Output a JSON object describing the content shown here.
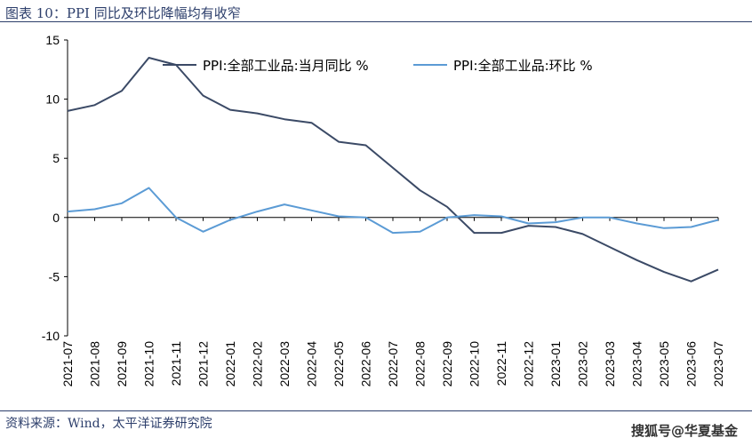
{
  "header": {
    "title": "图表 10：PPI 同比及环比降幅均有收窄"
  },
  "footer": {
    "source": "资料来源：Wind，太平洋证券研究院",
    "watermark": "搜狐号@华夏基金"
  },
  "chart_data": {
    "type": "line",
    "categories": [
      "2021-07",
      "2021-08",
      "2021-09",
      "2021-10",
      "2021-11",
      "2021-12",
      "2022-01",
      "2022-02",
      "2022-03",
      "2022-04",
      "2022-05",
      "2022-06",
      "2022-07",
      "2022-08",
      "2022-09",
      "2022-10",
      "2022-11",
      "2022-12",
      "2023-01",
      "2023-02",
      "2023-03",
      "2023-04",
      "2023-05",
      "2023-06",
      "2023-07"
    ],
    "series": [
      {
        "name": "PPI:全部工业品:当月同比 %",
        "color": "#3b4a66",
        "values": [
          9.0,
          9.5,
          10.7,
          13.5,
          12.9,
          10.3,
          9.1,
          8.8,
          8.3,
          8.0,
          6.4,
          6.1,
          4.2,
          2.3,
          0.9,
          -1.3,
          -1.3,
          -0.7,
          -0.8,
          -1.4,
          -2.5,
          -3.6,
          -4.6,
          -5.4,
          -4.4
        ]
      },
      {
        "name": "PPI:全部工业品:环比 %",
        "color": "#5b9bd5",
        "values": [
          0.5,
          0.7,
          1.2,
          2.5,
          0.0,
          -1.2,
          -0.2,
          0.5,
          1.1,
          0.6,
          0.1,
          0.0,
          -1.3,
          -1.2,
          0.0,
          0.2,
          0.1,
          -0.5,
          -0.4,
          0.0,
          0.0,
          -0.5,
          -0.9,
          -0.8,
          -0.2
        ]
      }
    ],
    "yticks": [
      15,
      10,
      5,
      0,
      -5,
      -10
    ],
    "ylim": [
      -10,
      15
    ],
    "grid": false,
    "legend": "top"
  }
}
